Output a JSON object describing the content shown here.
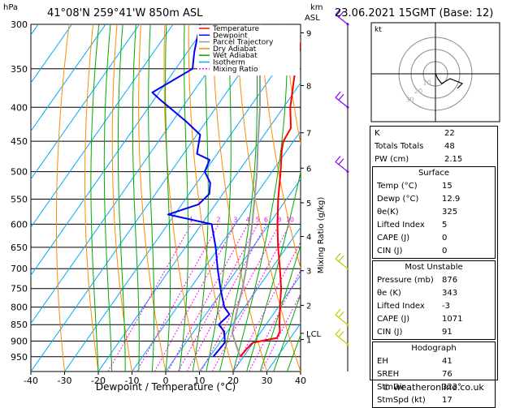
{
  "header": {
    "location": "41°08'N  259°41'W  850m  ASL",
    "datetime": "23.06.2021  15GMT  (Base: 12)"
  },
  "footer": {
    "copyright": "© weatheronline.co.uk"
  },
  "chart_data": {
    "type": "skew-t log-p diagram",
    "title": "41°08'N 259°41'W 850m ASL",
    "xlabel": "Dewpoint / Temperature (°C)",
    "ylabel_left": "hPa",
    "ylabel_right_top": "km\nASL",
    "ylabel_right": "Mixing Ratio (g/kg)",
    "x_ticks": [
      -40,
      -30,
      -20,
      -10,
      0,
      10,
      20,
      30,
      40
    ],
    "pressure_levels": [
      300,
      350,
      400,
      450,
      500,
      550,
      600,
      650,
      700,
      750,
      800,
      850,
      900,
      950
    ],
    "km_ticks": [
      {
        "label": "9",
        "p": 309
      },
      {
        "label": "8",
        "p": 371
      },
      {
        "label": "7",
        "p": 437
      },
      {
        "label": "6",
        "p": 494
      },
      {
        "label": "5",
        "p": 557
      },
      {
        "label": "4",
        "p": 626
      },
      {
        "label": "3",
        "p": 705
      },
      {
        "label": "2",
        "p": 795
      },
      {
        "label": "1",
        "p": 895
      },
      {
        "label": "LCL",
        "p": 876
      }
    ],
    "mixing_ratio_labels": [
      "1",
      "2",
      "3",
      "4",
      "5",
      "6",
      "8",
      "10",
      "15",
      "20",
      "25"
    ],
    "mixing_ratio_values": [
      1,
      2,
      3,
      4,
      5,
      6,
      8,
      10,
      15,
      20,
      25
    ],
    "legend": [
      "Temperature",
      "Dewpoint",
      "Parcel Trajectory",
      "Dry Adiabat",
      "Wet Adiabat",
      "Isotherm",
      "Mixing Ratio"
    ],
    "colors": {
      "temperature": "#ff0000",
      "dewpoint": "#0000ff",
      "parcel": "#999999",
      "dry_adiabat": "#ff8c00",
      "wet_adiabat": "#00aa00",
      "isotherm": "#00aaff",
      "mixing_ratio": "#ff00ff",
      "wind_barb": "#8000ff"
    },
    "temperature": [
      {
        "p": 950,
        "t": 19.0
      },
      {
        "p": 925,
        "t": 19.3
      },
      {
        "p": 905,
        "t": 19.8
      },
      {
        "p": 890,
        "t": 26.0
      },
      {
        "p": 870,
        "t": 25.5
      },
      {
        "p": 850,
        "t": 24.0
      },
      {
        "p": 800,
        "t": 20.5
      },
      {
        "p": 750,
        "t": 17.0
      },
      {
        "p": 700,
        "t": 12.5
      },
      {
        "p": 650,
        "t": 7.5
      },
      {
        "p": 600,
        "t": 2.5
      },
      {
        "p": 550,
        "t": -2.5
      },
      {
        "p": 500,
        "t": -7.5
      },
      {
        "p": 465,
        "t": -11.5
      },
      {
        "p": 450,
        "t": -13.0
      },
      {
        "p": 430,
        "t": -13.5
      },
      {
        "p": 400,
        "t": -18.0
      },
      {
        "p": 350,
        "t": -24.5
      },
      {
        "p": 300,
        "t": -31.0
      }
    ],
    "dewpoint": [
      {
        "p": 950,
        "t": 11.0
      },
      {
        "p": 925,
        "t": 11.3
      },
      {
        "p": 905,
        "t": 11.5
      },
      {
        "p": 890,
        "t": 10.5
      },
      {
        "p": 870,
        "t": 9.0
      },
      {
        "p": 850,
        "t": 6.0
      },
      {
        "p": 820,
        "t": 7.0
      },
      {
        "p": 800,
        "t": 4.0
      },
      {
        "p": 750,
        "t": -1.0
      },
      {
        "p": 700,
        "t": -6.0
      },
      {
        "p": 650,
        "t": -11.0
      },
      {
        "p": 600,
        "t": -17.0
      },
      {
        "p": 580,
        "t": -32.0
      },
      {
        "p": 560,
        "t": -25.0
      },
      {
        "p": 540,
        "t": -24.0
      },
      {
        "p": 520,
        "t": -26.0
      },
      {
        "p": 500,
        "t": -30.0
      },
      {
        "p": 480,
        "t": -31.0
      },
      {
        "p": 470,
        "t": -36.0
      },
      {
        "p": 440,
        "t": -39.0
      },
      {
        "p": 420,
        "t": -46.0
      },
      {
        "p": 390,
        "t": -58.0
      },
      {
        "p": 380,
        "t": -62.0
      },
      {
        "p": 350,
        "t": -55.0
      },
      {
        "p": 330,
        "t": -58.0
      },
      {
        "p": 300,
        "t": -62.0
      }
    ],
    "parcel": [
      {
        "p": 950,
        "t": 19.0
      },
      {
        "p": 876,
        "t": 11.8
      },
      {
        "p": 850,
        "t": 10.5
      },
      {
        "p": 800,
        "t": 8.0
      },
      {
        "p": 750,
        "t": 5.5
      },
      {
        "p": 700,
        "t": 2.5
      },
      {
        "p": 650,
        "t": -1.0
      },
      {
        "p": 600,
        "t": -5.0
      },
      {
        "p": 550,
        "t": -9.5
      },
      {
        "p": 500,
        "t": -14.5
      },
      {
        "p": 450,
        "t": -20.5
      },
      {
        "p": 400,
        "t": -27.0
      },
      {
        "p": 350,
        "t": -35.0
      },
      {
        "p": 300,
        "t": -44.0
      }
    ],
    "wind_barbs": [
      {
        "p": 300,
        "color": "#8000ff"
      },
      {
        "p": 400,
        "color": "#8000ff"
      },
      {
        "p": 500,
        "color": "#8000ff"
      },
      {
        "p": 700,
        "color": "#aacc00"
      },
      {
        "p": 850,
        "color": "#cccc00"
      },
      {
        "p": 910,
        "color": "#cccc00"
      }
    ],
    "hodograph": {
      "label": "kt",
      "points_kt": [
        [
          0,
          0
        ],
        [
          2,
          -4
        ],
        [
          5,
          -8
        ],
        [
          12,
          -4
        ],
        [
          22,
          -8
        ],
        [
          18,
          -12
        ]
      ],
      "ring_labels": [
        "10",
        "20",
        "30"
      ]
    }
  },
  "indices": {
    "basic": [
      {
        "label": "K",
        "value": "22"
      },
      {
        "label": "Totals Totals",
        "value": "48"
      },
      {
        "label": "PW (cm)",
        "value": "2.15"
      }
    ],
    "surface": {
      "title": "Surface",
      "rows": [
        {
          "label": "Temp (°C)",
          "value": "15"
        },
        {
          "label": "Dewp (°C)",
          "value": "12.9"
        },
        {
          "label": "θe(K)",
          "value": "325"
        },
        {
          "label": "Lifted Index",
          "value": "5"
        },
        {
          "label": "CAPE (J)",
          "value": "0"
        },
        {
          "label": "CIN (J)",
          "value": "0"
        }
      ]
    },
    "most_unstable": {
      "title": "Most Unstable",
      "rows": [
        {
          "label": "Pressure (mb)",
          "value": "876"
        },
        {
          "label": "θe (K)",
          "value": "343"
        },
        {
          "label": "Lifted Index",
          "value": "-3"
        },
        {
          "label": "CAPE (J)",
          "value": "1071"
        },
        {
          "label": "CIN (J)",
          "value": "91"
        }
      ]
    },
    "hodograph_table": {
      "title": "Hodograph",
      "rows": [
        {
          "label": "EH",
          "value": "41"
        },
        {
          "label": "SREH",
          "value": "76"
        },
        {
          "label": "StmDir",
          "value": "323°"
        },
        {
          "label": "StmSpd (kt)",
          "value": "17"
        }
      ]
    }
  }
}
